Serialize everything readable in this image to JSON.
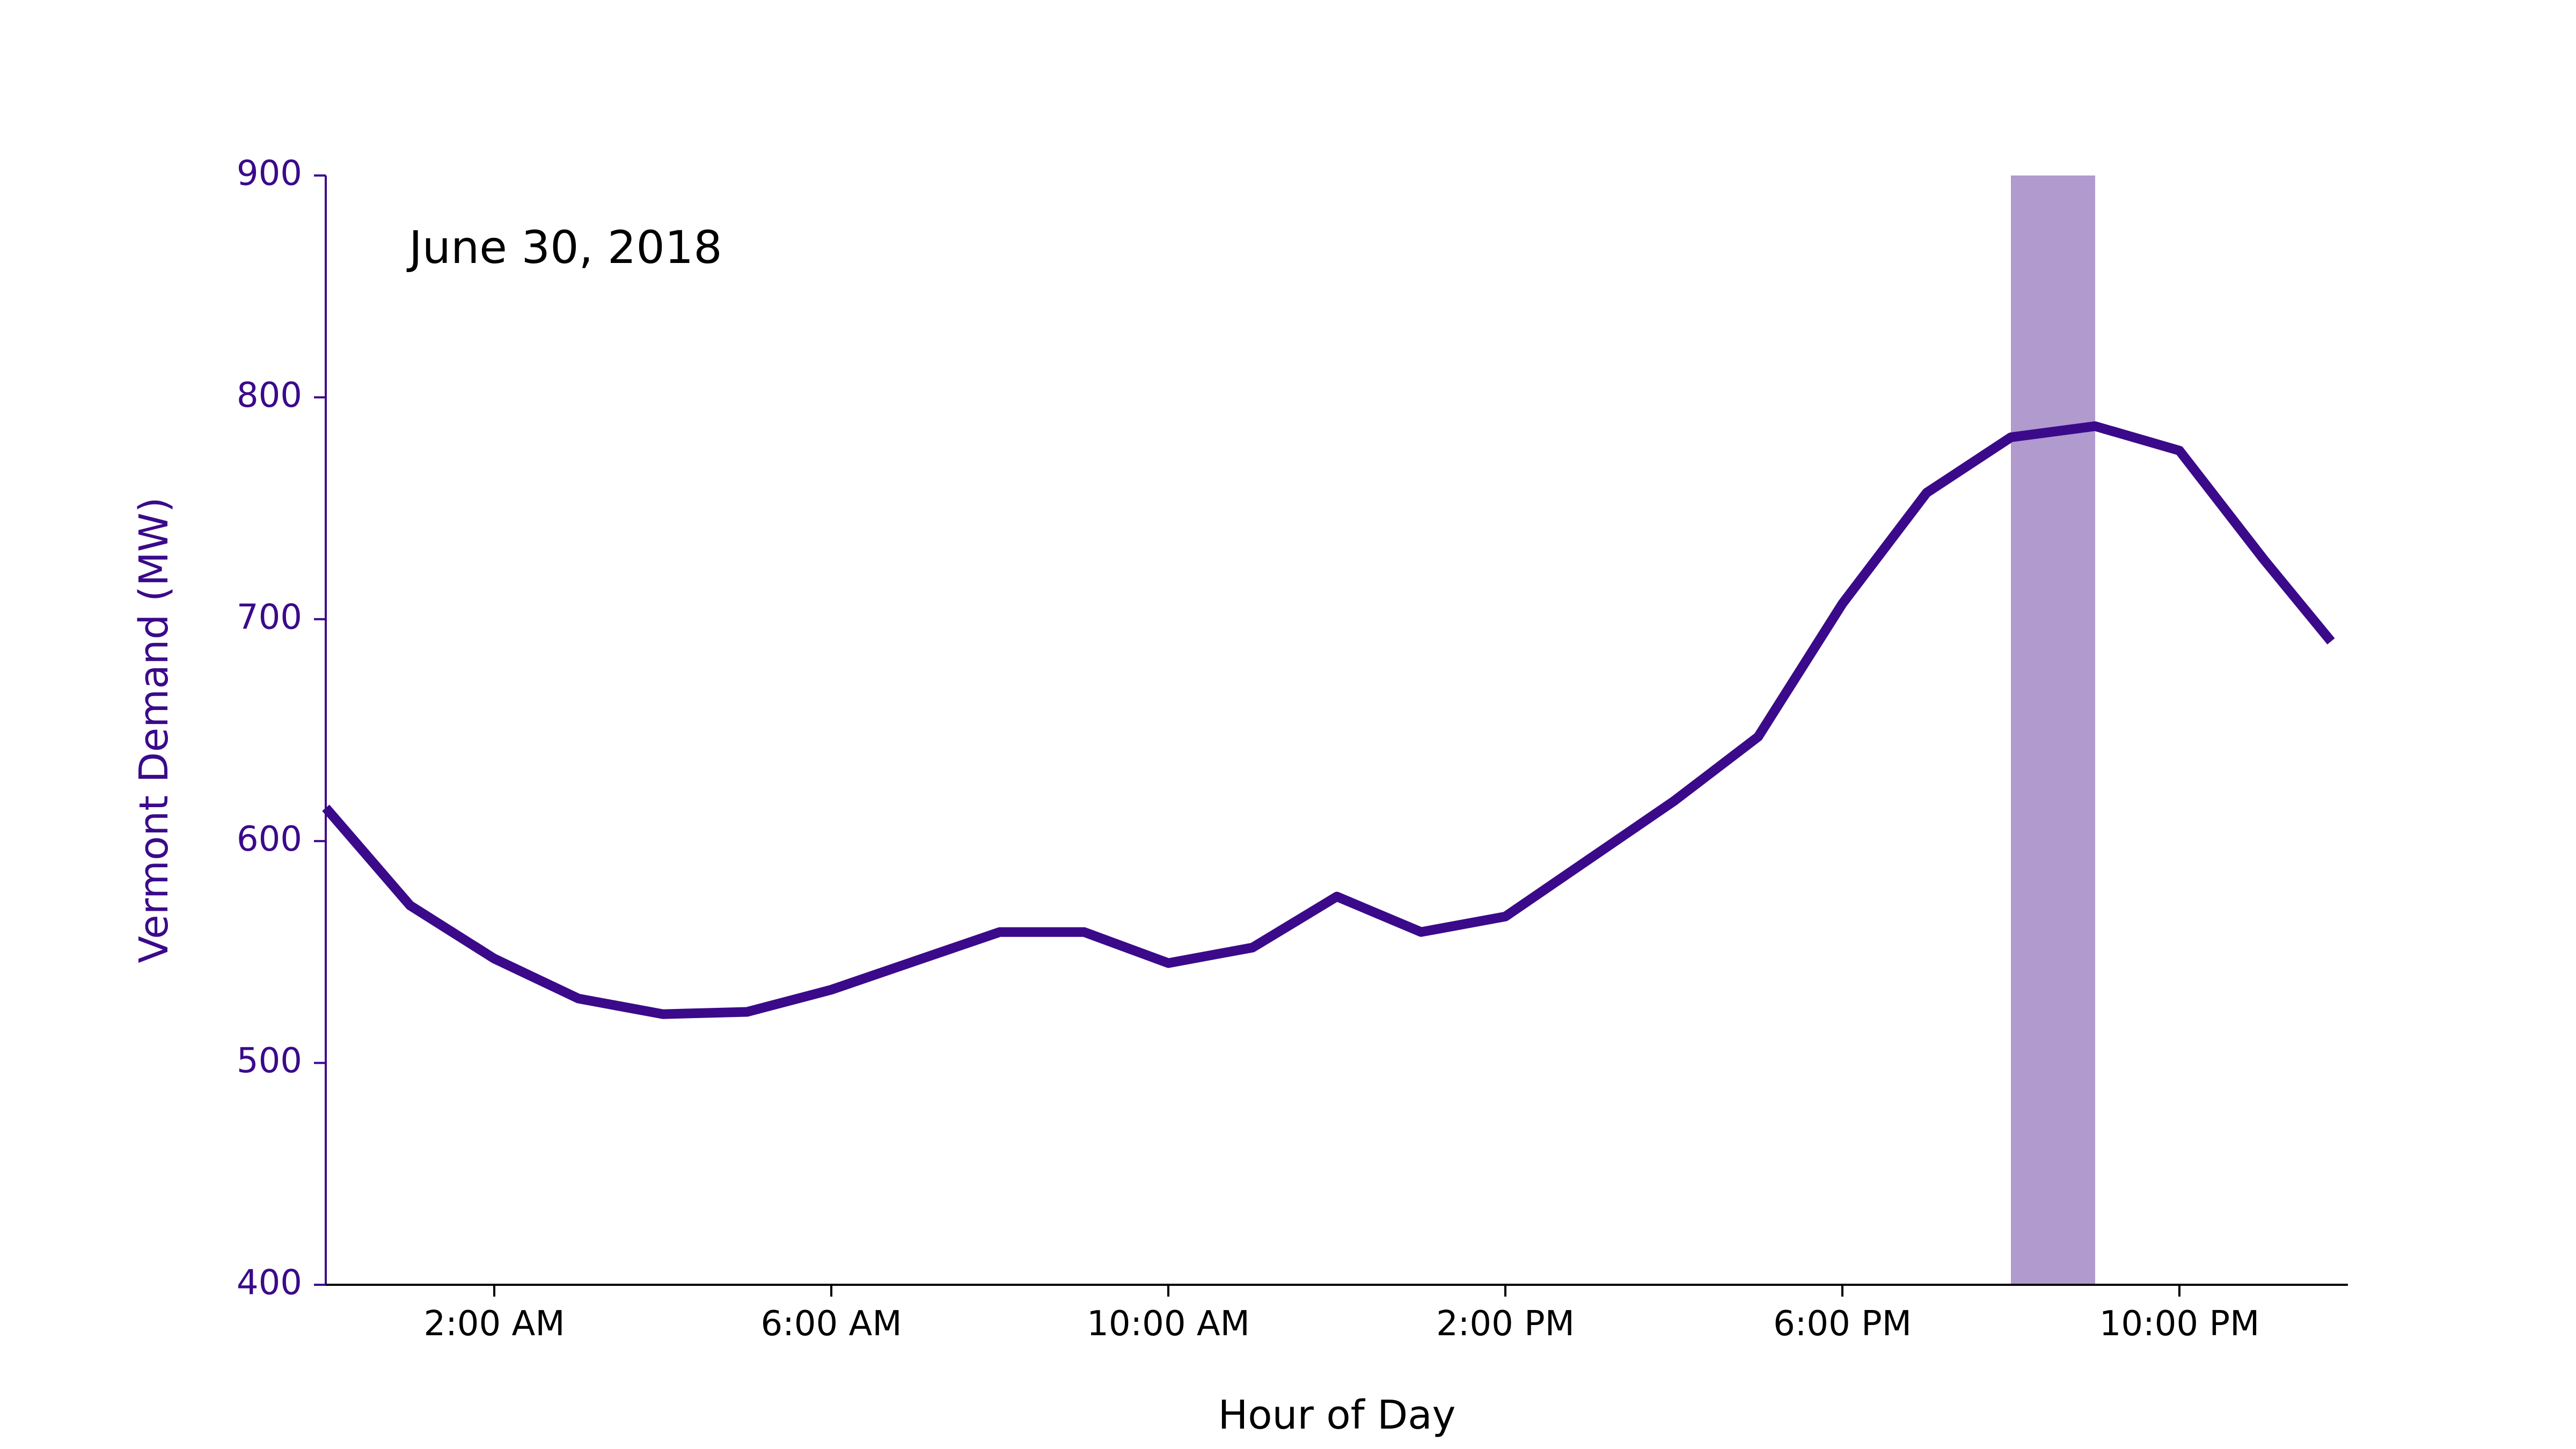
{
  "chart_data": {
    "type": "line",
    "annotation": "June 30, 2018",
    "xlabel": "Hour of Day",
    "ylabel": "Vermont Demand (MW)",
    "xlim": [
      0,
      24
    ],
    "ylim": [
      400,
      900
    ],
    "y_ticks": [
      400,
      500,
      600,
      700,
      800,
      900
    ],
    "x_ticks": [
      {
        "value": 2,
        "label": "2:00 AM"
      },
      {
        "value": 6,
        "label": "6:00 AM"
      },
      {
        "value": 10,
        "label": "10:00 AM"
      },
      {
        "value": 14,
        "label": "2:00 PM"
      },
      {
        "value": 18,
        "label": "6:00 PM"
      },
      {
        "value": 22,
        "label": "10:00 PM"
      }
    ],
    "highlight_span": {
      "x_start": 20,
      "x_end": 21,
      "color": "#b09ace"
    },
    "series": [
      {
        "color": "#3b0a8a",
        "x": [
          0,
          1,
          2,
          3,
          4,
          5,
          6,
          7,
          8,
          9,
          10,
          11,
          12,
          13,
          14,
          15,
          16,
          17,
          18,
          19,
          20,
          21,
          22,
          23,
          23.8
        ],
        "y": [
          615,
          571,
          547,
          529,
          522,
          523,
          533,
          546,
          559,
          559,
          545,
          552,
          575,
          559,
          566,
          592,
          618,
          647,
          707,
          757,
          782,
          787,
          776,
          727,
          690
        ]
      }
    ],
    "grid": false,
    "legend": "none"
  }
}
